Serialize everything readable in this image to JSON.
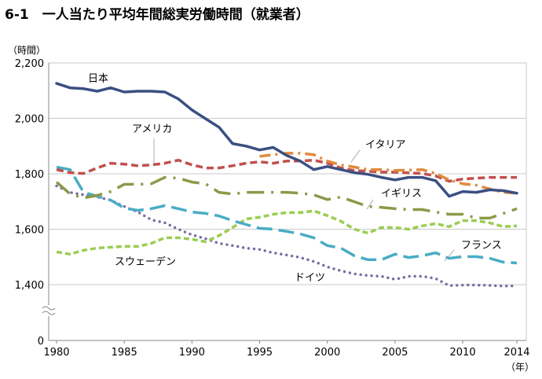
{
  "chart_data": {
    "type": "line",
    "title": "6-1　一人当たり平均年間総実労働時間（就業者）",
    "ylabel": "（時間）",
    "xlabel": "（年）",
    "ylim": [
      0,
      2200
    ],
    "y_axis_break": [
      0,
      1400
    ],
    "yticks": [
      0,
      1400,
      1600,
      1800,
      2000,
      2200
    ],
    "ytick_labels": [
      "0",
      "1,400",
      "1,600",
      "1,800",
      "2,000",
      "2,200"
    ],
    "xticks": [
      1980,
      1985,
      1990,
      1995,
      2000,
      2005,
      2010,
      2014
    ],
    "xtick_labels": [
      "1980",
      "1985",
      "1990",
      "1995",
      "2000",
      "2005",
      "2010",
      "2014"
    ],
    "grid": true,
    "x": [
      1980,
      1981,
      1982,
      1983,
      1984,
      1985,
      1986,
      1987,
      1988,
      1989,
      1990,
      1991,
      1992,
      1993,
      1994,
      1995,
      1996,
      1997,
      1998,
      1999,
      2000,
      2001,
      2002,
      2003,
      2004,
      2005,
      2006,
      2007,
      2008,
      2009,
      2010,
      2011,
      2012,
      2013,
      2014
    ],
    "series": [
      {
        "name": "日本",
        "color": "#3b4f82",
        "style": "solid",
        "values": [
          2126,
          2110,
          2107,
          2098,
          2110,
          2095,
          2098,
          2098,
          2095,
          2070,
          2030,
          1999,
          1968,
          1909,
          1900,
          1886,
          1895,
          1866,
          1846,
          1815,
          1826,
          1815,
          1804,
          1798,
          1787,
          1778,
          1787,
          1787,
          1775,
          1719,
          1736,
          1733,
          1742,
          1739,
          1730
        ]
      },
      {
        "name": "アメリカ",
        "color": "#c0504d",
        "style": "dash",
        "values": [
          1815,
          1804,
          1801,
          1821,
          1838,
          1835,
          1829,
          1832,
          1838,
          1849,
          1832,
          1821,
          1821,
          1829,
          1838,
          1843,
          1838,
          1846,
          1846,
          1849,
          1838,
          1821,
          1812,
          1809,
          1806,
          1806,
          1803,
          1801,
          1792,
          1773,
          1781,
          1784,
          1787,
          1787,
          1787
        ]
      },
      {
        "name": "イタリア",
        "color": "#e08a3c",
        "style": "dashdot",
        "values": [
          null,
          null,
          null,
          null,
          null,
          null,
          null,
          null,
          null,
          null,
          null,
          null,
          null,
          null,
          null,
          1863,
          1869,
          1874,
          1874,
          1869,
          1846,
          1832,
          1824,
          1815,
          1815,
          1812,
          1813,
          1815,
          1801,
          1778,
          1764,
          1759,
          1745,
          1733,
          1730
        ]
      },
      {
        "name": "イギリス",
        "color": "#8a9a4a",
        "style": "longdashdot",
        "values": [
          1770,
          1727,
          1713,
          1722,
          1736,
          1762,
          1762,
          1764,
          1787,
          1784,
          1770,
          1764,
          1733,
          1727,
          1733,
          1733,
          1733,
          1733,
          1730,
          1724,
          1707,
          1716,
          1699,
          1682,
          1679,
          1674,
          1671,
          1671,
          1662,
          1654,
          1654,
          1640,
          1640,
          1657,
          1674
        ]
      },
      {
        "name": "フランス",
        "color": "#4aacc6",
        "style": "longdash",
        "values": [
          1824,
          1815,
          1733,
          1719,
          1705,
          1676,
          1668,
          1674,
          1685,
          1674,
          1662,
          1657,
          1648,
          1631,
          1617,
          1603,
          1600,
          1592,
          1583,
          1569,
          1541,
          1532,
          1504,
          1490,
          1490,
          1510,
          1498,
          1504,
          1515,
          1495,
          1501,
          1501,
          1495,
          1481,
          1478
        ]
      },
      {
        "name": "スウェーデン",
        "color": "#9acd52",
        "style": "shortdash",
        "values": [
          1518,
          1510,
          1524,
          1532,
          1535,
          1538,
          1538,
          1549,
          1569,
          1569,
          1564,
          1555,
          1577,
          1606,
          1637,
          1643,
          1654,
          1660,
          1660,
          1666,
          1649,
          1629,
          1600,
          1586,
          1606,
          1606,
          1600,
          1612,
          1620,
          1609,
          1631,
          1631,
          1623,
          1609,
          1612
        ]
      },
      {
        "name": "ドイツ",
        "color": "#7a6ea0",
        "style": "dot",
        "values": [
          1756,
          1733,
          1724,
          1716,
          1705,
          1682,
          1662,
          1634,
          1623,
          1600,
          1580,
          1566,
          1549,
          1541,
          1532,
          1527,
          1515,
          1507,
          1498,
          1484,
          1464,
          1450,
          1439,
          1433,
          1430,
          1419,
          1430,
          1430,
          1422,
          1377,
          1388,
          1391,
          1380,
          1365,
          1371
        ]
      }
    ]
  }
}
